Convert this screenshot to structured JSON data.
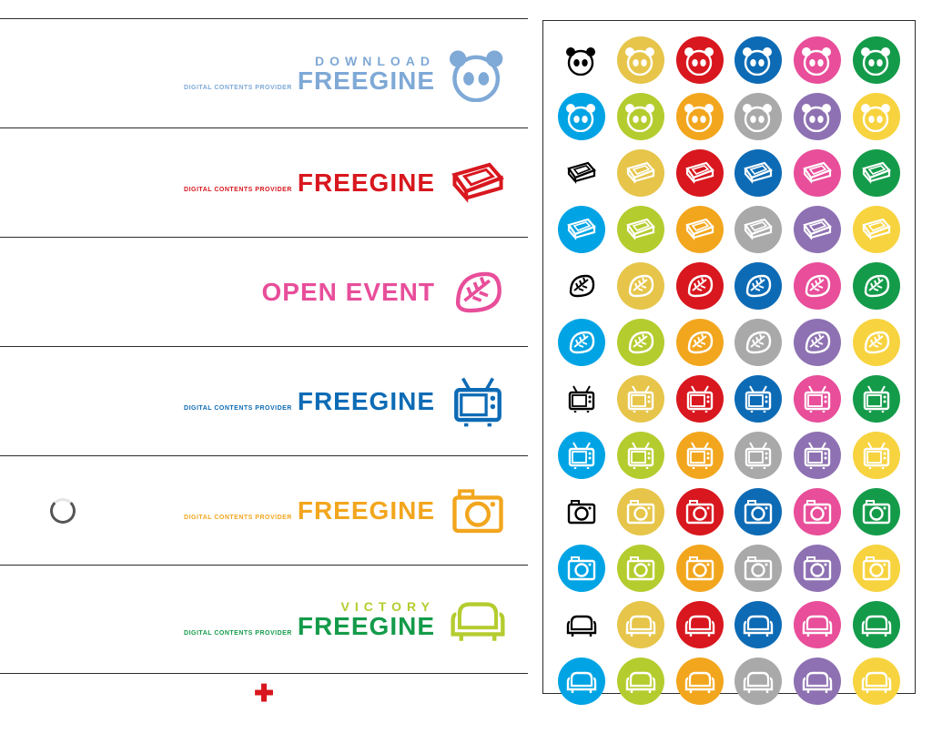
{
  "left_rows": [
    {
      "top": "DOWNLOAD",
      "main": "FREEGINE",
      "sub": "DIGITAL CONTENTS PROVIDER",
      "color": "#7fa9d6",
      "icon": "panda"
    },
    {
      "top": "",
      "main": "FREEGINE",
      "sub": "DIGITAL CONTENTS PROVIDER",
      "color": "#d8171e",
      "icon": "cassette"
    },
    {
      "top": "",
      "main": "OPEN EVENT",
      "sub": "",
      "color": "#e84e9a",
      "icon": "leaf"
    },
    {
      "top": "",
      "main": "FREEGINE",
      "sub": "DIGITAL CONTENTS PROVIDER",
      "color": "#0d6bb5",
      "icon": "tv"
    },
    {
      "top": "",
      "main": "FREEGINE",
      "sub": "DIGITAL CONTENTS PROVIDER",
      "color": "#f2a61e",
      "icon": "camera",
      "spinner": true
    },
    {
      "top": "VICTORY",
      "main": "FREEGINE",
      "sub": "DIGITAL CONTENTS PROVIDER",
      "color_top": "#b5cc2f",
      "color": "#149b4a",
      "icon": "sofa",
      "icon_color": "#b5cc2f"
    }
  ],
  "footer_symbol": "✚",
  "swatch_icons": [
    "panda",
    "cassette",
    "leaf",
    "tv",
    "camera",
    "sofa"
  ],
  "swatch_row1_colors": [
    "#000000",
    "#e6c54a",
    "#d8171e",
    "#0d6bb5",
    "#e84e9a",
    "#149b4a"
  ],
  "swatch_row2_colors": [
    "#00a4e4",
    "#b5cc2f",
    "#f2a61e",
    "#a9a9a9",
    "#8e71b2",
    "#f7d33f"
  ],
  "background": "#ffffff"
}
